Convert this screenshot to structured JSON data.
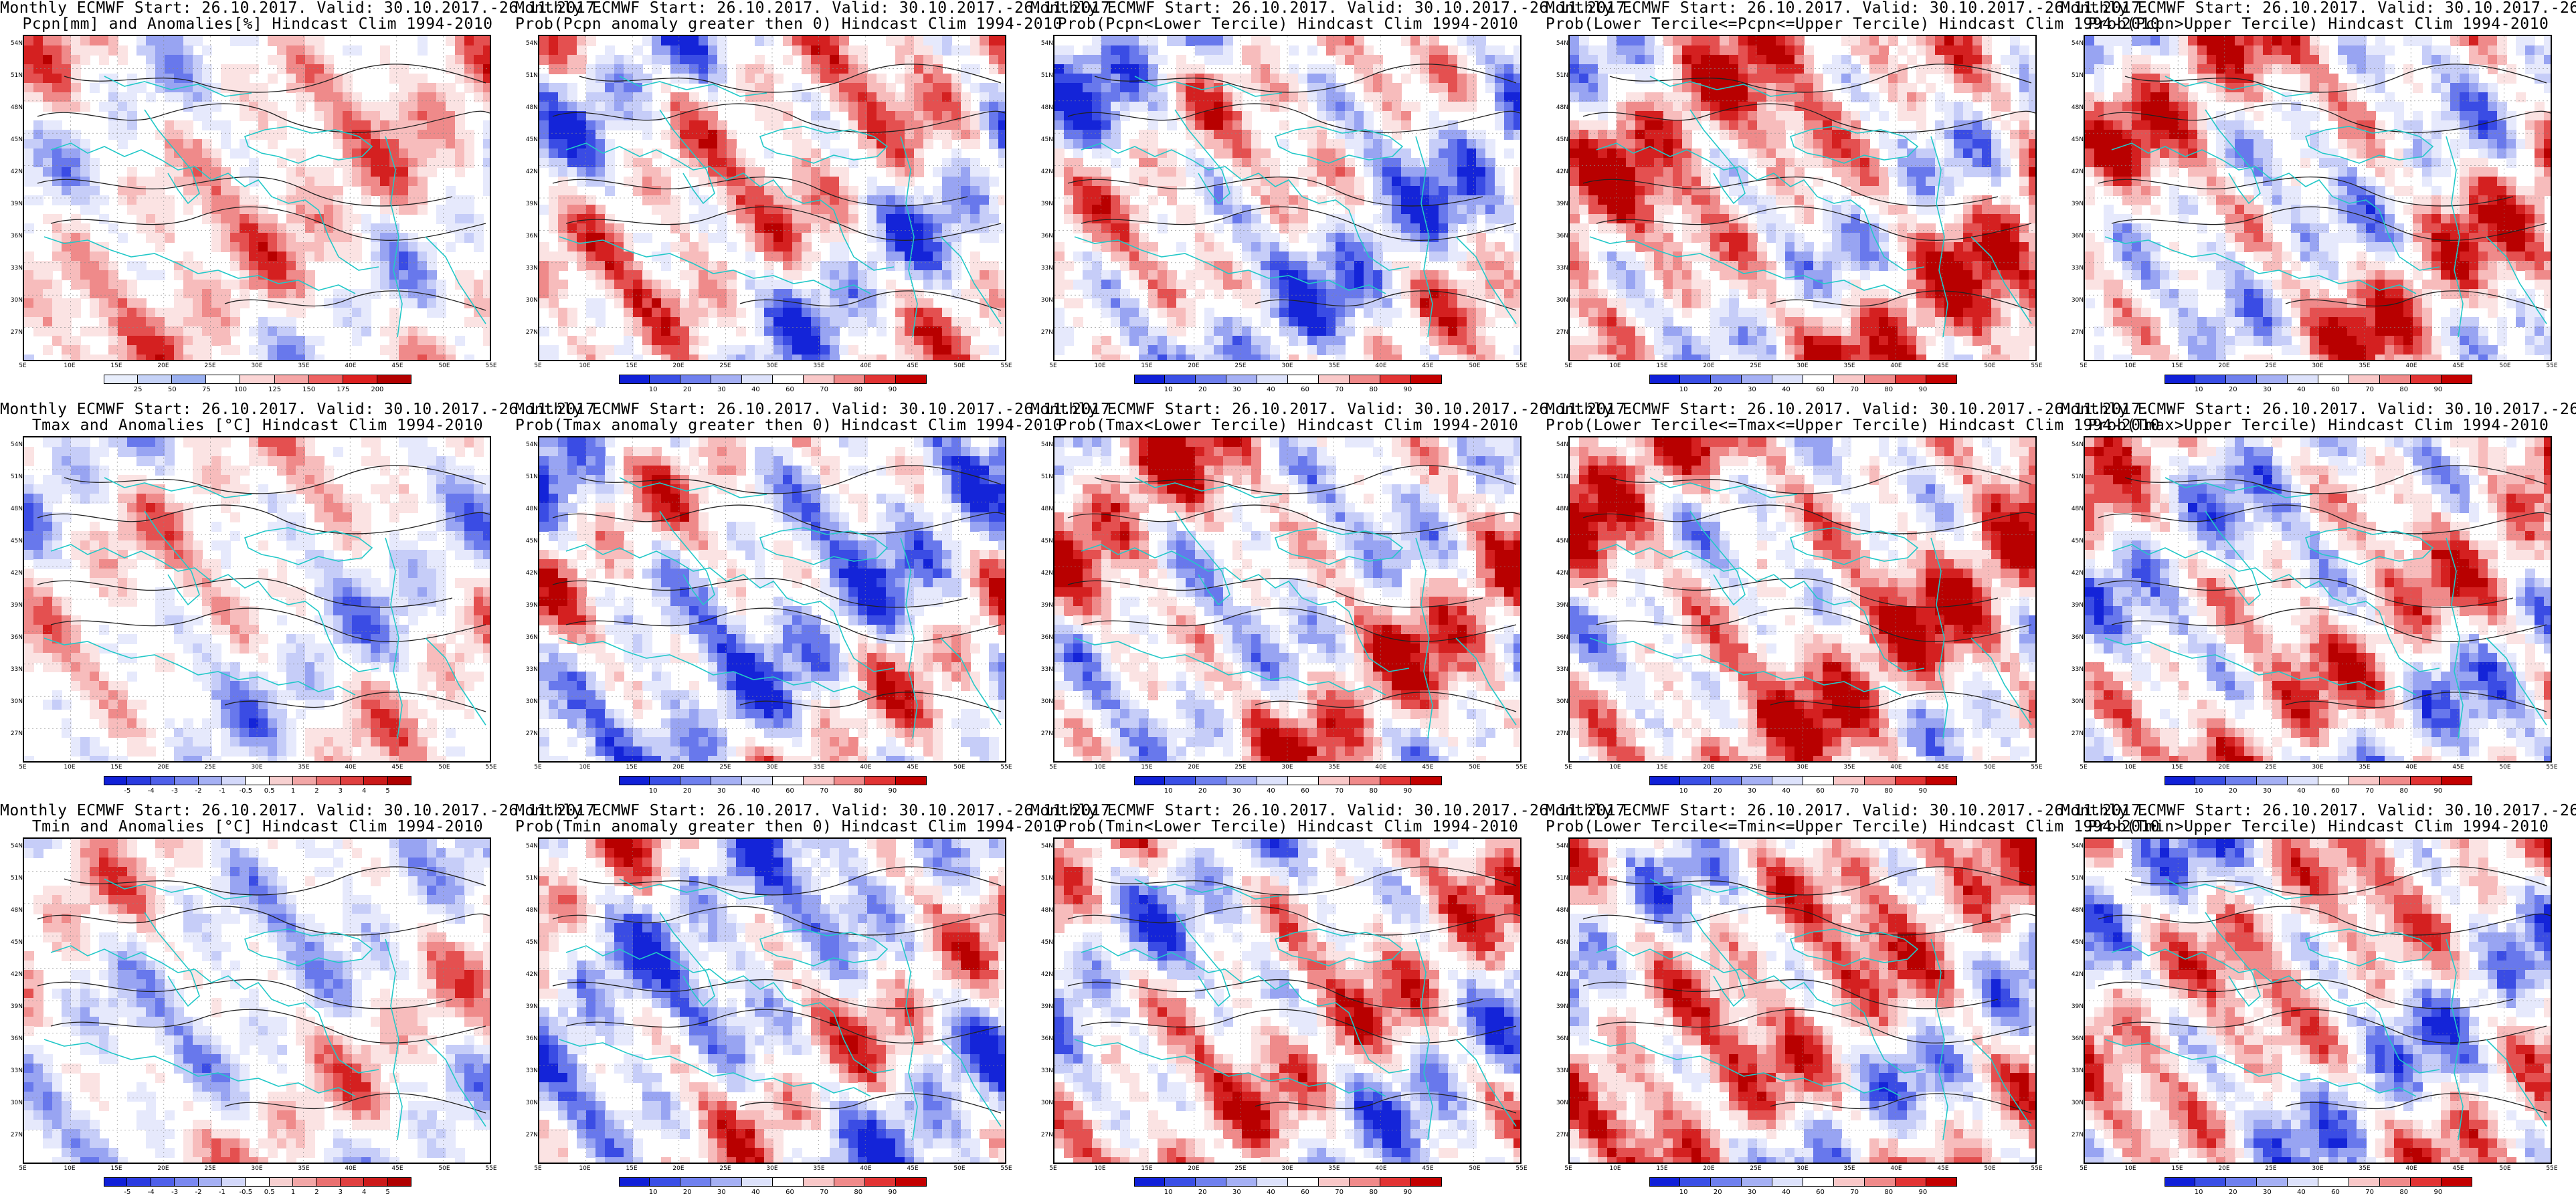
{
  "header_line": "Monthly ECMWF Start: 26.10.2017. Valid: 30.10.2017.-26.11.2017.",
  "lat_labels": [
    "54N",
    "51N",
    "48N",
    "45N",
    "42N",
    "39N",
    "36N",
    "33N",
    "30N",
    "27N"
  ],
  "lon_labels": [
    "5E",
    "10E",
    "15E",
    "20E",
    "25E",
    "30E",
    "35E",
    "40E",
    "45E",
    "50E",
    "55E"
  ],
  "colorbars": {
    "precip_anom": {
      "labels": [
        "25",
        "50",
        "75",
        "100",
        "125",
        "150",
        "175",
        "200"
      ],
      "colors": [
        "#e8eefc",
        "#c5d2f7",
        "#9ab0f0",
        "#ffffff",
        "#fbd5d5",
        "#f5a5a5",
        "#ee6262",
        "#dd2020",
        "#b30000"
      ]
    },
    "prob": {
      "labels": [
        "10",
        "20",
        "30",
        "40",
        "60",
        "70",
        "80",
        "90"
      ],
      "colors": [
        "#1020d8",
        "#3a4fe6",
        "#6f80ee",
        "#a5b0f4",
        "#dde2fb",
        "#ffffff",
        "#f9c8c8",
        "#f08a8a",
        "#e23434",
        "#c40000"
      ]
    },
    "temp_anom": {
      "labels": [
        "-5",
        "-4",
        "-3",
        "-2",
        "-1",
        "-0.5",
        "0.5",
        "1",
        "2",
        "3",
        "4",
        "5"
      ],
      "colors": [
        "#1020d8",
        "#2a3be0",
        "#4f60ea",
        "#7a88f0",
        "#a5b0f4",
        "#d3d8fa",
        "#ffffff",
        "#f7d0d0",
        "#f2a6a6",
        "#ea7070",
        "#e04040",
        "#cc1a1a",
        "#b00000"
      ]
    }
  },
  "rows": [
    {
      "variable": "Pcpn",
      "panels": [
        {
          "title2": "Pcpn[mm] and Anomalies[%] Hindcast Clim 1994-2010",
          "colorbar": "precip_anom",
          "palette": "anom",
          "shade": 0.15
        },
        {
          "title2": "Prob(Pcpn anomaly greater then 0) Hindcast Clim 1994-2010",
          "colorbar": "prob",
          "palette": "prob",
          "shade": 0.05
        },
        {
          "title2": "Prob(Pcpn<Lower Tercile) Hindcast Clim 1994-2010",
          "colorbar": "prob",
          "palette": "prob",
          "shade": -0.05
        },
        {
          "title2": "Prob(Lower Tercile<=Pcpn<=Upper Tercile) Hindcast Clim 1994-2010",
          "colorbar": "prob",
          "palette": "prob",
          "shade": 0.2
        },
        {
          "title2": "Prob(Pcpn>Upper Tercile) Hindcast Clim 1994-2010",
          "colorbar": "prob",
          "palette": "prob",
          "shade": 0.1
        }
      ]
    },
    {
      "variable": "Tmax",
      "panels": [
        {
          "title2": "Tmax and Anomalies [°C] Hindcast Clim 1994-2010",
          "colorbar": "temp_anom",
          "palette": "anom",
          "shade": 0.0
        },
        {
          "title2": "Prob(Tmax anomaly greater then 0) Hindcast Clim 1994-2010",
          "colorbar": "prob",
          "palette": "prob",
          "shade": -0.1
        },
        {
          "title2": "Prob(Tmax<Lower Tercile) Hindcast Clim 1994-2010",
          "colorbar": "prob",
          "palette": "prob",
          "shade": 0.1
        },
        {
          "title2": "Prob(Lower Tercile<=Tmax<=Upper Tercile) Hindcast Clim 1994-2010",
          "colorbar": "prob",
          "palette": "prob",
          "shade": 0.2
        },
        {
          "title2": "Prob(Tmax>Upper Tercile) Hindcast Clim 1994-2010",
          "colorbar": "prob",
          "palette": "prob",
          "shade": 0.05
        }
      ]
    },
    {
      "variable": "Tmin",
      "panels": [
        {
          "title2": "Tmin and Anomalies [°C] Hindcast Clim 1994-2010",
          "colorbar": "temp_anom",
          "palette": "anom",
          "shade": -0.05
        },
        {
          "title2": "Prob(Tmin anomaly greater then 0) Hindcast Clim 1994-2010",
          "colorbar": "prob",
          "palette": "prob",
          "shade": -0.1
        },
        {
          "title2": "Prob(Tmin<Lower Tercile) Hindcast Clim 1994-2010",
          "colorbar": "prob",
          "palette": "prob",
          "shade": 0.05
        },
        {
          "title2": "Prob(Lower Tercile<=Tmin<=Upper Tercile) Hindcast Clim 1994-2010",
          "colorbar": "prob",
          "palette": "prob",
          "shade": 0.15
        },
        {
          "title2": "Prob(Tmin>Upper Tercile) Hindcast Clim 1994-2010",
          "colorbar": "prob",
          "palette": "prob",
          "shade": 0.05
        }
      ]
    }
  ],
  "colors": {
    "coastline": "#23c8c8",
    "contour": "#222222",
    "frame": "#000000"
  }
}
